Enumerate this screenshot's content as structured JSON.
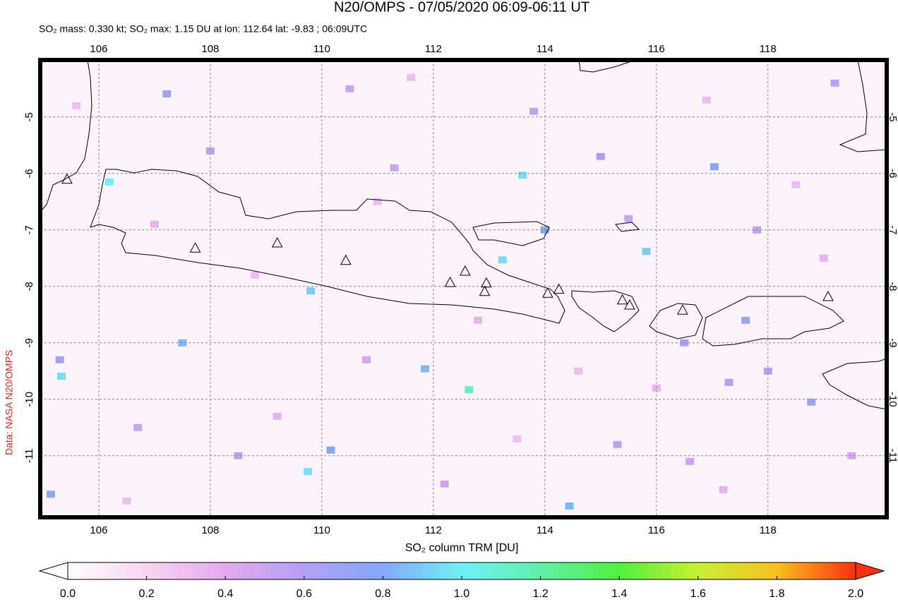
{
  "chart_data": {
    "type": "map",
    "title": "N20/OMPS - 07/05/2020 06:09-06:11 UT",
    "subtitle": "SO₂ mass: 0.330 kt; SO₂ max: 1.15 DU at lon: 112.64 lat: -9.83 ; 06:09UTC",
    "credit": "Data: NASA N20/OMPS",
    "xlim": [
      104.95,
      120.13
    ],
    "ylim": [
      -12.09,
      -3.99
    ],
    "xticks": [
      106,
      108,
      110,
      112,
      114,
      116,
      118
    ],
    "yticks": [
      -5,
      -6,
      -7,
      -8,
      -9,
      -10,
      -11
    ],
    "grid": true,
    "cells": {
      "lon": [
        112.64,
        113.6,
        106.19,
        113.24,
        115.82,
        117.04,
        105.33,
        109.8,
        109.75,
        114.44,
        110.16,
        105.14,
        118.78,
        107.22,
        111.85,
        114.0,
        107.5,
        105.3,
        117.6,
        116.5,
        117.3,
        118.0,
        115.0,
        119.2,
        108.0,
        110.5,
        111.3,
        113.8,
        115.5,
        117.8,
        106.7,
        108.5,
        112.2,
        115.3,
        116.6,
        119.5,
        110.8,
        105.6,
        107.0,
        108.8,
        111.0,
        112.8,
        114.6,
        116.0,
        118.5,
        119.0,
        106.5,
        109.2,
        113.5,
        117.2,
        111.6,
        116.9
      ],
      "lat": [
        -9.83,
        -6.03,
        -6.15,
        -7.53,
        -7.38,
        -5.88,
        -9.59,
        -8.08,
        -11.28,
        -11.89,
        -10.9,
        -11.68,
        -10.05,
        -4.59,
        -9.46,
        -7.0,
        -9.0,
        -9.3,
        -8.6,
        -9.0,
        -9.7,
        -9.5,
        -5.7,
        -4.4,
        -5.6,
        -4.5,
        -5.9,
        -4.9,
        -6.8,
        -7.0,
        -10.5,
        -11.0,
        -11.5,
        -10.8,
        -11.1,
        -11.0,
        -9.3,
        -4.8,
        -6.9,
        -7.8,
        -6.5,
        -8.6,
        -9.5,
        -9.8,
        -6.2,
        -7.5,
        -11.8,
        -10.3,
        -10.7,
        -11.6,
        -4.3,
        -4.7
      ],
      "values": [
        1.15,
        0.95,
        1.0,
        0.95,
        0.9,
        0.75,
        0.95,
        0.9,
        0.95,
        0.85,
        0.8,
        0.75,
        0.7,
        0.7,
        0.85,
        0.8,
        0.85,
        0.7,
        0.7,
        0.65,
        0.6,
        0.6,
        0.65,
        0.6,
        0.55,
        0.5,
        0.5,
        0.55,
        0.5,
        0.55,
        0.5,
        0.55,
        0.5,
        0.55,
        0.5,
        0.45,
        0.45,
        0.3,
        0.35,
        0.3,
        0.3,
        0.35,
        0.3,
        0.35,
        0.3,
        0.35,
        0.3,
        0.35,
        0.3,
        0.35,
        0.3,
        0.3
      ]
    },
    "volcanoes": {
      "lon": [
        105.43,
        107.73,
        109.2,
        110.43,
        112.3,
        112.57,
        112.95,
        112.92,
        114.05,
        114.25,
        115.39,
        115.52,
        116.47,
        119.08
      ],
      "lat": [
        -6.11,
        -7.33,
        -7.24,
        -7.55,
        -7.94,
        -7.74,
        -7.95,
        -8.1,
        -8.13,
        -8.06,
        -8.25,
        -8.34,
        -8.43,
        -8.19
      ]
    },
    "colorbar": {
      "label": "SO₂ column TRM [DU]",
      "lim": [
        0,
        2
      ],
      "ticks": [
        {
          "value": 0,
          "label": "0.0"
        },
        {
          "value": 0.2,
          "label": "0.2"
        },
        {
          "value": 0.4,
          "label": "0.4"
        },
        {
          "value": 0.6,
          "label": "0.6"
        },
        {
          "value": 0.8,
          "label": "0.8"
        },
        {
          "value": 1,
          "label": "1.0"
        },
        {
          "value": 1.2,
          "label": "1.2"
        },
        {
          "value": 1.4,
          "label": "1.4"
        },
        {
          "value": 1.6,
          "label": "1.6"
        },
        {
          "value": 1.8,
          "label": "1.8"
        },
        {
          "value": 2,
          "label": "2.0"
        }
      ],
      "colormap": [
        "#ffffff",
        "#f8d4f0",
        "#e4a8f0",
        "#b4a0f4",
        "#84a8f8",
        "#70f0f8",
        "#60f0a8",
        "#50f040",
        "#c8f030",
        "#f8c020",
        "#f83010"
      ]
    }
  }
}
